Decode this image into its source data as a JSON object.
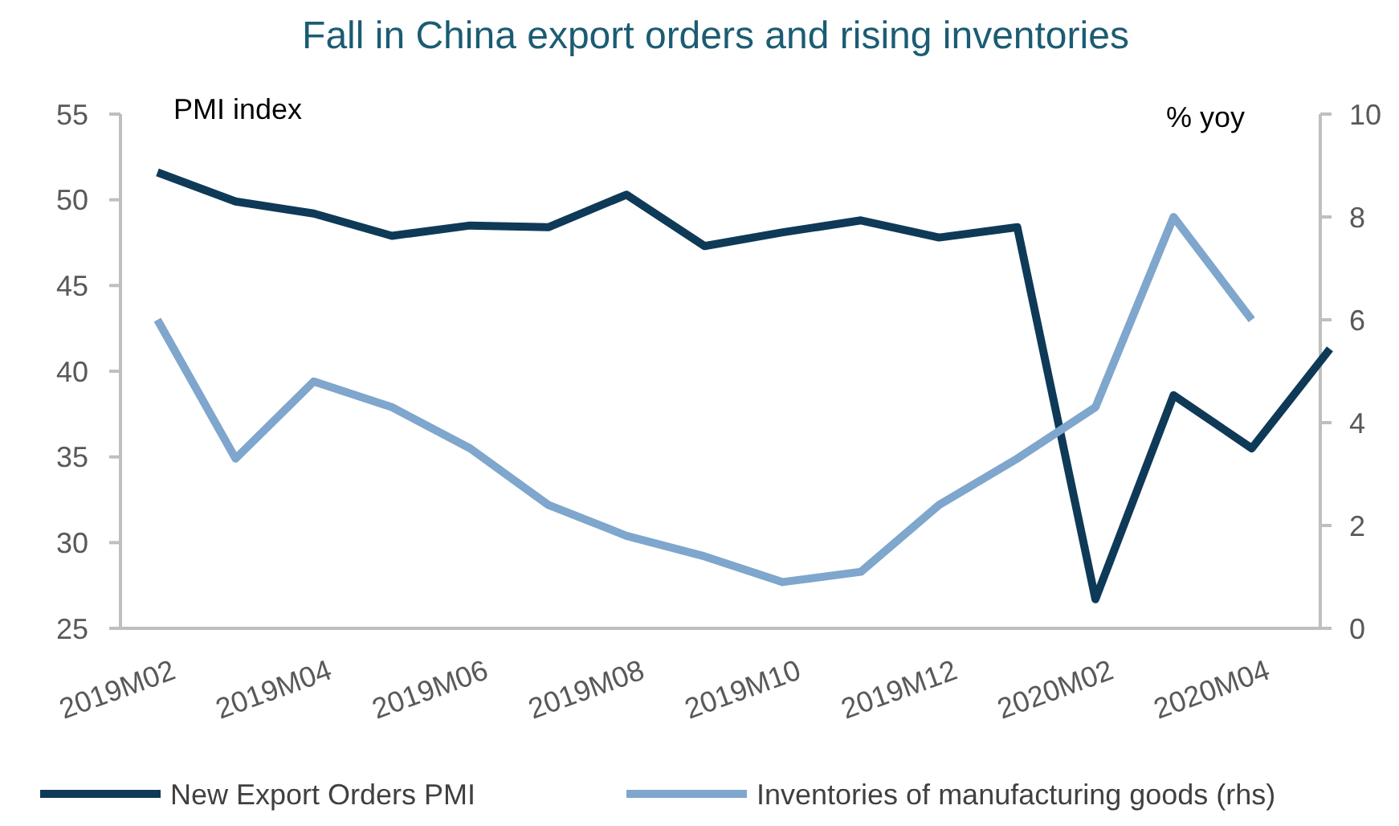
{
  "chart_data": {
    "type": "line",
    "title": "Fall in China export orders and rising inventories",
    "ylabel": "PMI index",
    "y2label": "% yoy",
    "categories": [
      "2019M02",
      null,
      "2019M04",
      null,
      "2019M06",
      null,
      "2019M08",
      null,
      "2019M10",
      null,
      "2019M12",
      null,
      "2020M02",
      null,
      "2020M04",
      null
    ],
    "series": [
      {
        "name": "New Export Orders PMI",
        "color": "#0e3a58",
        "values": [
          51.6,
          49.9,
          49.2,
          47.9,
          48.5,
          48.4,
          50.3,
          47.3,
          48.1,
          48.8,
          47.8,
          48.4,
          26.7,
          38.6,
          35.5,
          41.3
        ]
      },
      {
        "name": "Inventories of manufacturing goods (rhs)",
        "color": "#7fa6cc",
        "axis": "y2",
        "values": [
          6.0,
          3.3,
          4.8,
          4.3,
          3.5,
          2.4,
          1.8,
          1.4,
          0.9,
          1.1,
          2.4,
          3.3,
          4.3,
          8.0,
          6.0,
          null
        ]
      }
    ],
    "ylim": [
      25,
      55
    ],
    "yticks": [
      25,
      30,
      35,
      40,
      45,
      50,
      55
    ],
    "y2lim": [
      0,
      10
    ],
    "y2ticks": [
      0,
      2,
      4,
      6,
      8,
      10
    ],
    "grid": false,
    "legend": "bottom",
    "marker": "none",
    "line_style": "solid"
  }
}
